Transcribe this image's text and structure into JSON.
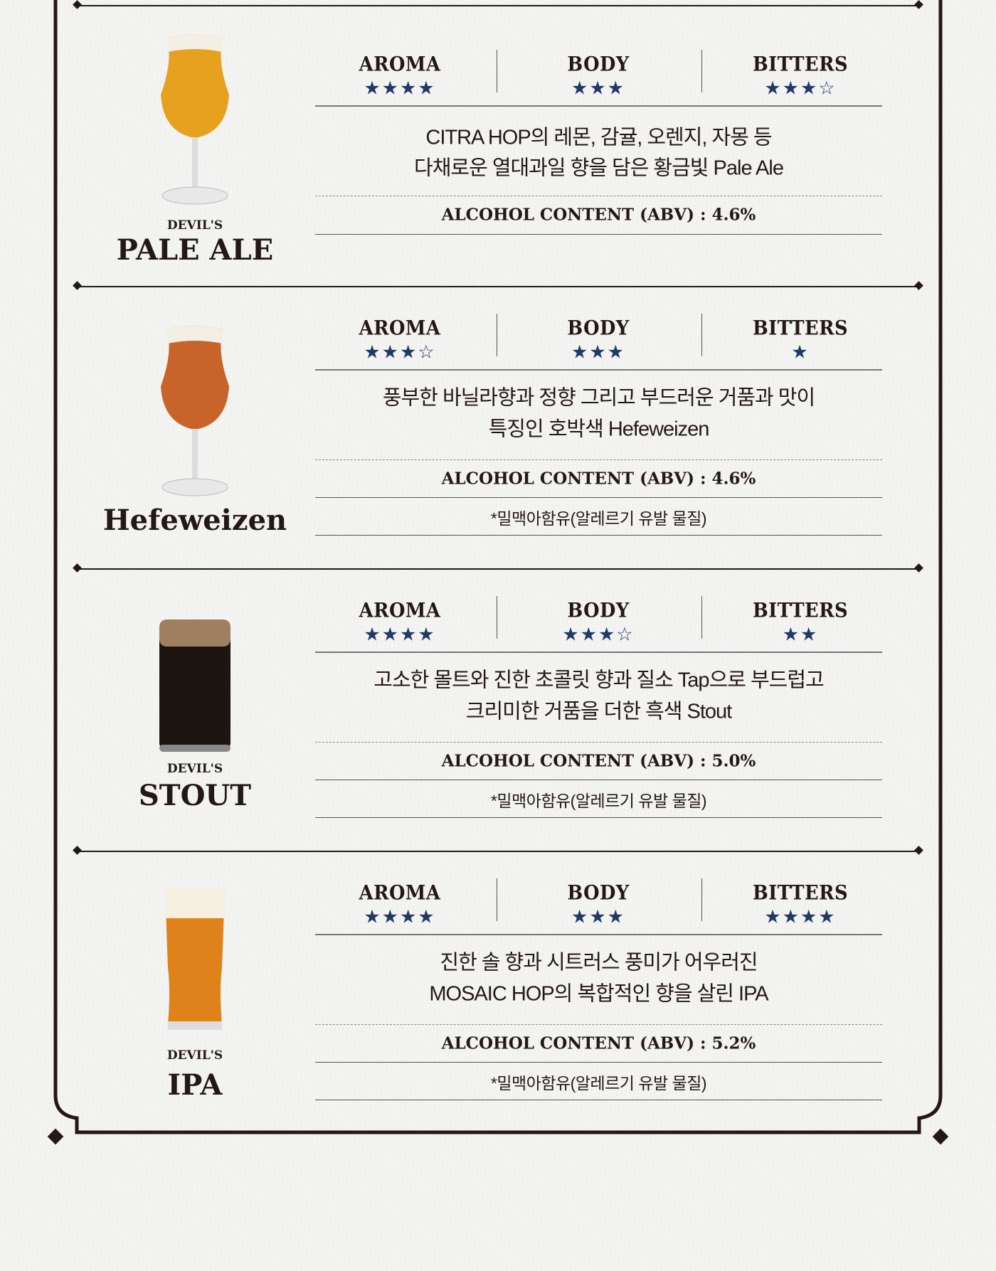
{
  "colors": {
    "star": "#1f3a68",
    "ink": "#231815",
    "paper": "#f4f4f2"
  },
  "labels": {
    "aroma": "AROMA",
    "body": "BODY",
    "bitters": "BITTERS"
  },
  "beers": [
    {
      "brand": "DEVIL'S",
      "name": "PALE ALE",
      "glass": "tulip-glass-icon",
      "beer_color": "#e6a21f",
      "ratings": {
        "aroma": "★★★★",
        "body": "★★★",
        "bitters": "★★★☆"
      },
      "description": [
        "CITRA HOP의 레몬, 감귤, 오렌지, 자몽 등",
        "다채로운 열대과일 향을 담은 황금빛 Pale Ale"
      ],
      "abv": "ALCOHOL CONTENT (ABV) : 4.6%",
      "allergy": ""
    },
    {
      "brand": "",
      "name": "Hefeweizen",
      "glass": "tulip-glass-icon",
      "beer_color": "#c8642a",
      "ratings": {
        "aroma": "★★★☆",
        "body": "★★★",
        "bitters": "★"
      },
      "description": [
        "풍부한 바닐라향과 정향 그리고 부드러운 거품과 맛이",
        "특징인 호박색 Hefeweizen"
      ],
      "abv": "ALCOHOL CONTENT (ABV) : 4.6%",
      "allergy": "*밀맥아함유(알레르기 유발 물질)"
    },
    {
      "brand": "DEVIL'S",
      "name": "STOUT",
      "glass": "can-glass-icon",
      "beer_color": "#1c1512",
      "ratings": {
        "aroma": "★★★★",
        "body": "★★★☆",
        "bitters": "★★"
      },
      "description": [
        "고소한 몰트와 진한 초콜릿 향과 질소 Tap으로 부드럽고",
        "크리미한 거품을 더한 흑색 Stout"
      ],
      "abv": "ALCOHOL CONTENT (ABV) : 5.0%",
      "allergy": "*밀맥아함유(알레르기 유발 물질)"
    },
    {
      "brand": "DEVIL'S",
      "name": "IPA",
      "glass": "pint-glass-icon",
      "beer_color": "#e0821c",
      "ratings": {
        "aroma": "★★★★",
        "body": "★★★",
        "bitters": "★★★★"
      },
      "description": [
        "진한 솔 향과 시트러스 풍미가 어우러진",
        "MOSAIC HOP의 복합적인 향을 살린 IPA"
      ],
      "abv": "ALCOHOL CONTENT (ABV) : 5.2%",
      "allergy": "*밀맥아함유(알레르기 유발 물질)"
    }
  ]
}
